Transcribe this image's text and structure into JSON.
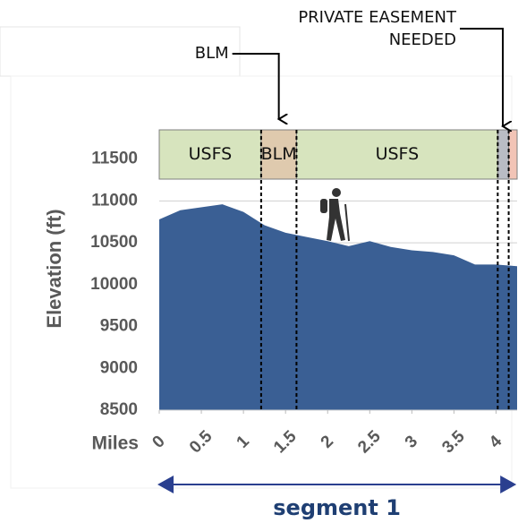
{
  "chart_data": {
    "type": "area",
    "ylabel": "Elevation (ft)",
    "xlabel": "Miles",
    "x": [
      0,
      0.25,
      0.75,
      1.0,
      1.25,
      1.5,
      1.75,
      2.0,
      2.25,
      2.5,
      2.75,
      3.0,
      3.25,
      3.5,
      3.75,
      4.0,
      4.25
    ],
    "values": [
      10780,
      10890,
      10960,
      10870,
      10710,
      10620,
      10570,
      10520,
      10460,
      10520,
      10450,
      10410,
      10390,
      10350,
      10240,
      10240,
      10220
    ],
    "color": "#3a5f94",
    "xlim": [
      0,
      4.25
    ],
    "xticks": [
      0,
      0.5,
      1,
      1.5,
      2,
      2.5,
      3,
      3.5,
      4
    ],
    "ylim": [
      8500,
      11850
    ],
    "yticks": [
      8500,
      9000,
      9500,
      10000,
      10500,
      11000,
      11500
    ],
    "grid": true,
    "land_segments": [
      {
        "label": "USFS",
        "start": 0,
        "end": 1.21,
        "color": "#d7e4be"
      },
      {
        "label": "BLM",
        "start": 1.21,
        "end": 1.63,
        "color": "#dfcaae"
      },
      {
        "label": "USFS",
        "start": 1.63,
        "end": 4.02,
        "color": "#d7e4be"
      },
      {
        "label": null,
        "start": 4.02,
        "end": 4.15,
        "color": "#b9bcc4"
      },
      {
        "label": null,
        "start": 4.15,
        "end": 4.25,
        "color": "#f2c4b6"
      }
    ],
    "annotations": [
      {
        "text": "BLM",
        "x": 1.42
      },
      {
        "text": "PRIVATE EASEMENT",
        "text2": "NEEDED",
        "x": 4.08
      }
    ],
    "segment": {
      "label": "segment 1",
      "start": 0,
      "end": 4.22
    }
  }
}
